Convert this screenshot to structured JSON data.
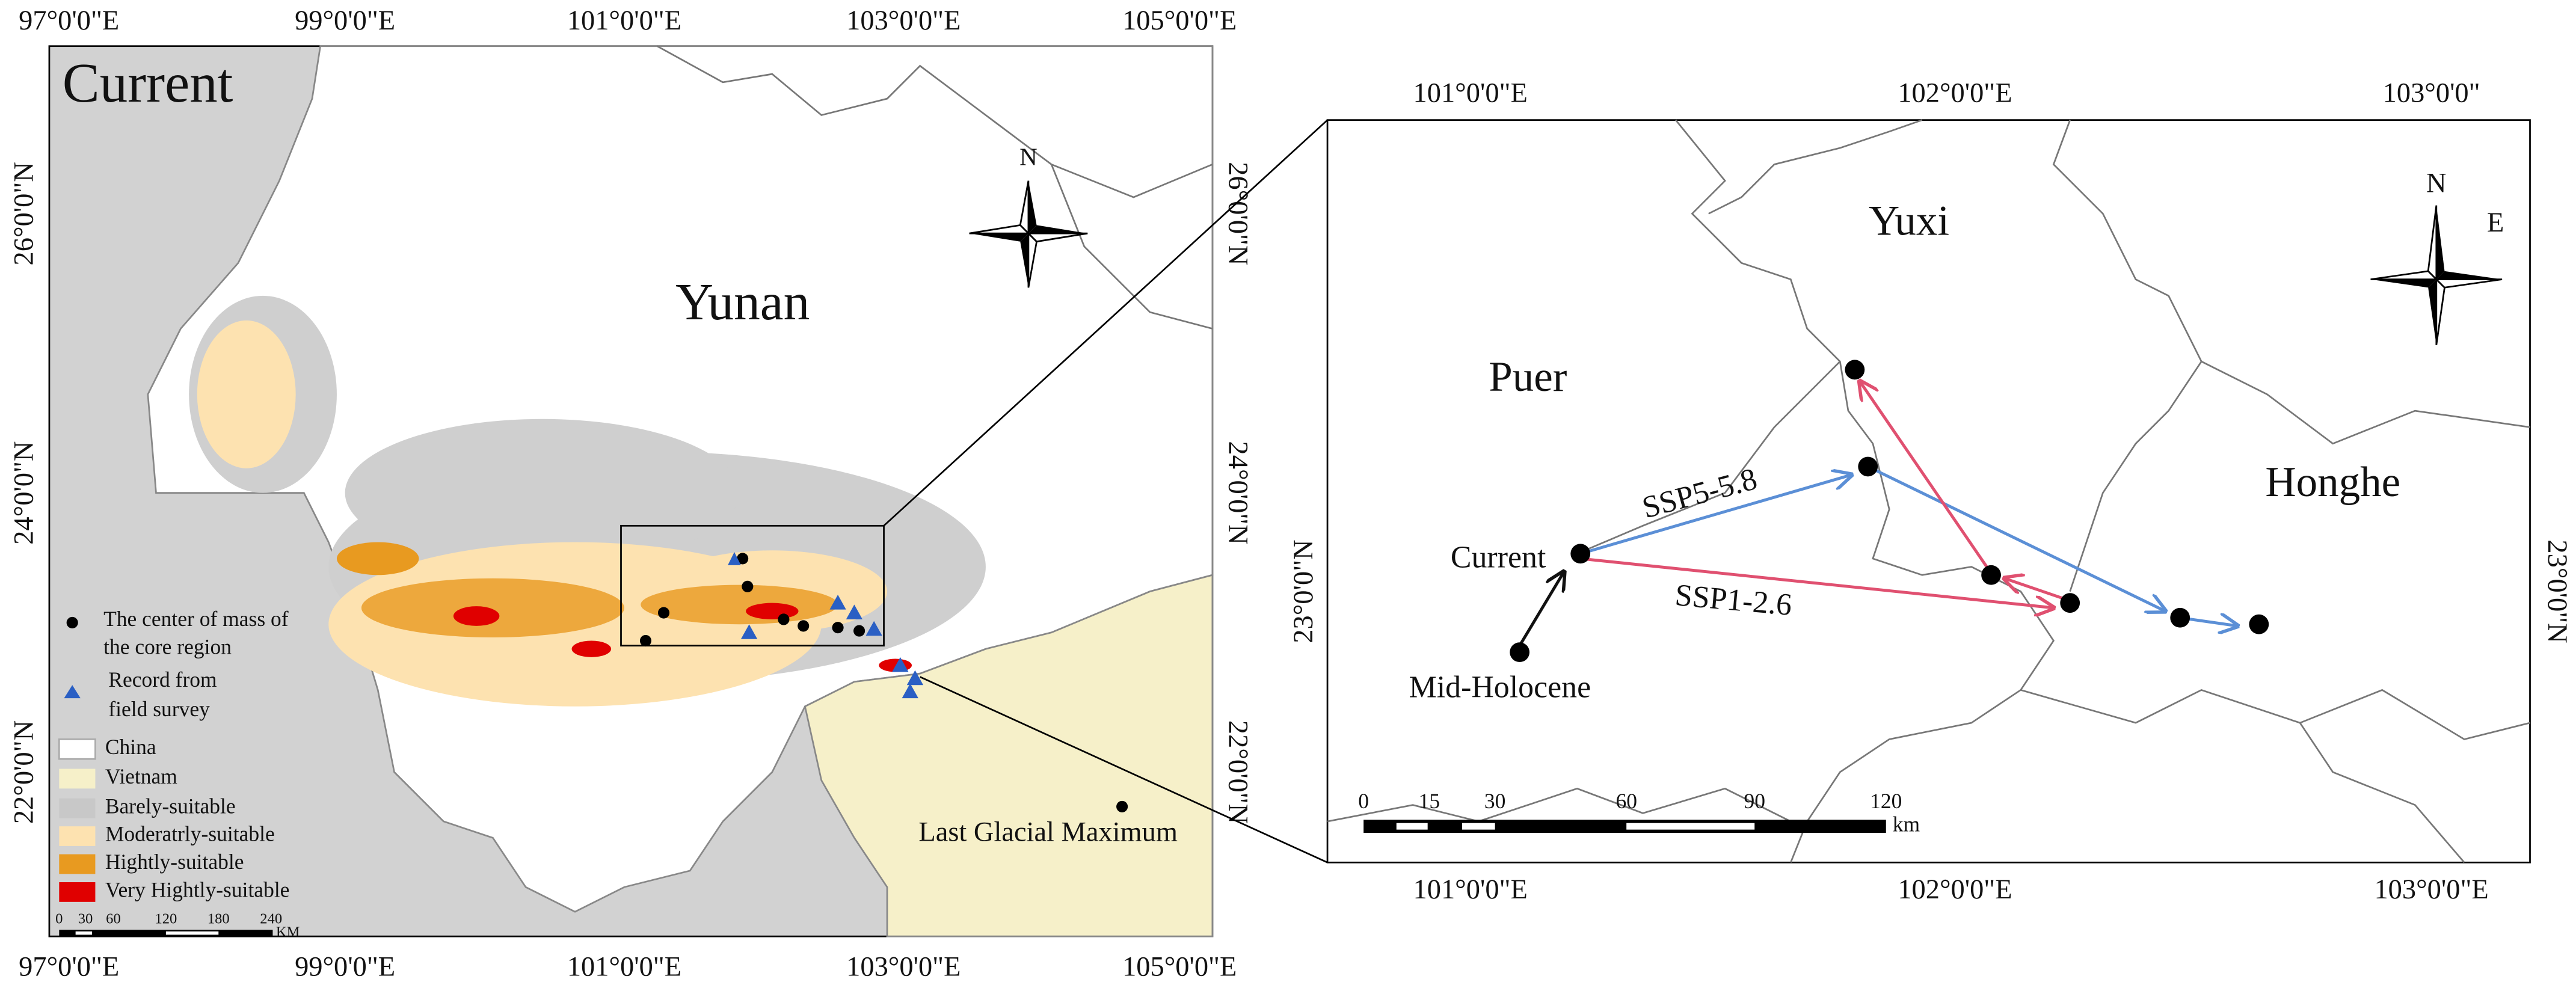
{
  "left_map": {
    "title": "Current",
    "region": "Yunan",
    "lgm_label": "Last Glacial Maximum",
    "north": "N",
    "x_labels": [
      "97°0'0\"E",
      "99°0'0\"E",
      "101°0'0\"E",
      "103°0'0\"E",
      "105°0'0\"E"
    ],
    "y_labels_left": [
      "26°0'0\"N",
      "24°0'0\"N",
      "22°0'0\"N"
    ],
    "y_labels_right": [
      "26°0'0\"N",
      "24°0'0\"N",
      "22°0'0\"N"
    ],
    "legend": [
      {
        "label": [
          "The center of mass of",
          "the core region"
        ]
      },
      {
        "label": [
          "Record from",
          "field survey"
        ]
      },
      {
        "label": "China"
      },
      {
        "label": "Vietnam"
      },
      {
        "label": "Barely-suitable"
      },
      {
        "label": "Moderatrly-suitable"
      },
      {
        "label": "Hightly-suitable"
      },
      {
        "label": "Very Hightly-suitable"
      }
    ],
    "scale_labels": [
      "0",
      "30",
      "60",
      "120",
      "180",
      "240"
    ],
    "scale_unit": "KM"
  },
  "right_map": {
    "x_labels_top": [
      "101°0'0\"E",
      "102°0'0\"E",
      "103°0'0\""
    ],
    "x_labels_bottom": [
      "101°0'0\"E",
      "102°0'0\"E",
      "103°0'0\"E"
    ],
    "y_label_left": "23°0'0\"N",
    "y_label_right": "23°0'0\"N",
    "places": [
      "Yuxi",
      "Puer",
      "Honghe"
    ],
    "period_labels": [
      "Current",
      "Mid-Holocene",
      "SSP5-5.8",
      "SSP1-2.6"
    ],
    "compass": [
      "N",
      "E"
    ],
    "scale_labels": [
      "0",
      "15",
      "30",
      "60",
      "90",
      "120"
    ],
    "scale_unit": "km"
  }
}
